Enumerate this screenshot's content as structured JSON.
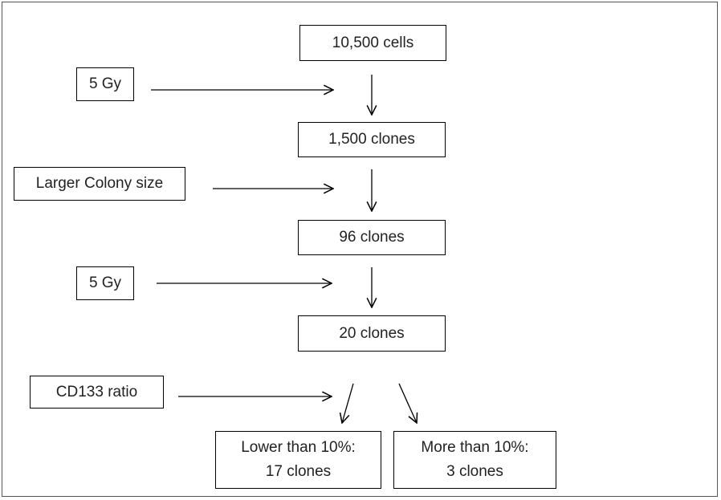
{
  "steps": [
    {
      "label": "10,500 cells"
    },
    {
      "label": "1,500 clones"
    },
    {
      "label": "96 clones"
    },
    {
      "label": "20 clones"
    }
  ],
  "criteria": [
    {
      "label": "5 Gy"
    },
    {
      "label": "Larger Colony size"
    },
    {
      "label": "5 Gy"
    },
    {
      "label": "CD133 ratio"
    }
  ],
  "outcomes": [
    {
      "lines": [
        "Lower than 10%:",
        "17 clones"
      ]
    },
    {
      "lines": [
        "More than 10%:",
        "3 clones"
      ]
    }
  ]
}
